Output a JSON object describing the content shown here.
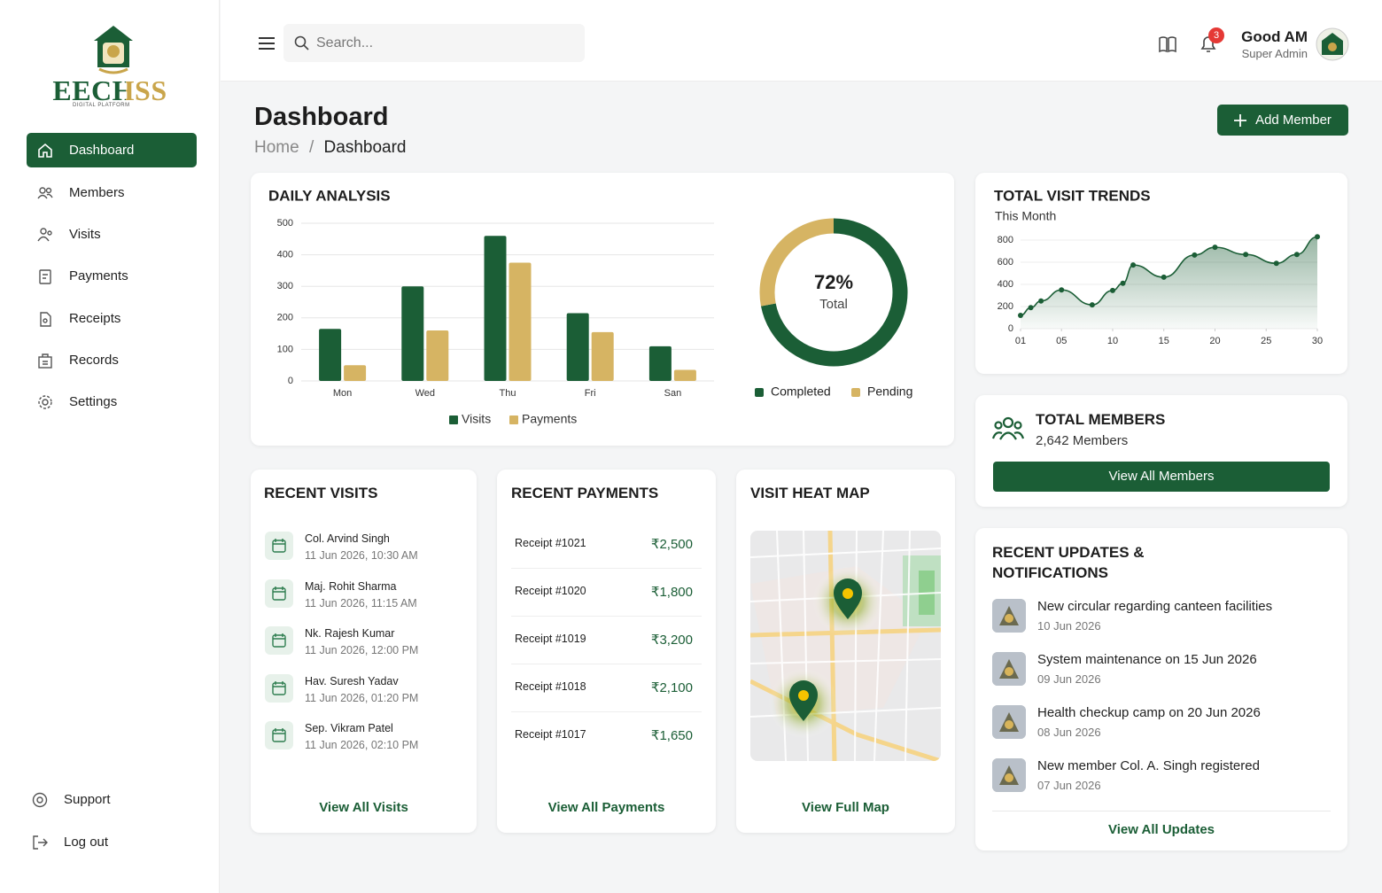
{
  "sidebar": {
    "logo": {
      "name": "EECHSS",
      "tagline": "DIGITAL PLATFORM"
    },
    "nav": [
      "Dashboard",
      "Members",
      "Visits",
      "Payments",
      "Receipts",
      "Records",
      "Settings"
    ],
    "footer_nav": [
      "Support",
      "Log out"
    ]
  },
  "topbar": {
    "search_placeholder": "Search...",
    "notification_count": 3,
    "user": {
      "greeting": "Good AM",
      "role": "Super Admin"
    }
  },
  "page_header": {
    "title": "Dashboard",
    "breadcrumb": [
      "Home",
      "Dashboard"
    ],
    "action": "Add Member"
  },
  "chart_data": [
    {
      "type": "bar",
      "title": "DAILY ANALYSIS",
      "categories": [
        "Mon",
        "Wed",
        "Thu",
        "Fri",
        "San"
      ],
      "series": [
        {
          "name": "Visits",
          "color": "#1b5e36",
          "values": [
            165,
            300,
            460,
            215,
            110
          ]
        },
        {
          "name": "Payments",
          "color": "#d6b463",
          "values": [
            50,
            160,
            375,
            155,
            35
          ]
        }
      ],
      "ylim": [
        0,
        500
      ],
      "yticks": [
        0,
        100,
        200,
        300,
        400,
        500
      ],
      "grid": true,
      "legend": "bottom"
    },
    {
      "type": "donut",
      "categories": [
        "Completed",
        "Pending"
      ],
      "values": [
        72,
        28
      ],
      "value_labels": [
        "72%",
        null
      ],
      "colors": [
        "#1b5e36",
        "#d6b463"
      ],
      "center_text": "Total",
      "legend": "bottom"
    },
    {
      "type": "line",
      "title": "TOTAL VISIT TRENDS",
      "subtitle": "This Month",
      "x": [
        1,
        2,
        3,
        5,
        8,
        10,
        11,
        12,
        15,
        18,
        20,
        23,
        26,
        28,
        30
      ],
      "values": [
        120,
        190,
        250,
        350,
        215,
        345,
        410,
        575,
        465,
        665,
        735,
        670,
        590,
        670,
        830
      ],
      "color": "#1b5e36",
      "area": true,
      "xlim": [
        1,
        30
      ],
      "xticks": [
        {
          "value": 1,
          "label": "01"
        },
        {
          "value": 5,
          "label": "05"
        },
        10,
        15,
        20,
        25,
        30
      ],
      "ylim": [
        0,
        800
      ],
      "yticks": [
        0,
        200,
        400,
        600,
        800
      ],
      "grid": true
    }
  ],
  "total_members": {
    "title": "TOTAL MEMBERS",
    "count_text": "2,642 Members",
    "action": "View All Members"
  },
  "recent_visits": {
    "title": "RECENT VISITS",
    "action": "View All Visits",
    "items": [
      {
        "name": "Col. Arvind Singh",
        "time": "11 Jun 2026, 10:30 AM"
      },
      {
        "name": "Maj. Rohit Sharma",
        "time": "11 Jun 2026, 11:15 AM"
      },
      {
        "name": "Nk. Rajesh Kumar",
        "time": "11 Jun 2026, 12:00 PM"
      },
      {
        "name": "Hav. Suresh Yadav",
        "time": "11 Jun 2026, 01:20 PM"
      },
      {
        "name": "Sep. Vikram Patel",
        "time": "11 Jun 2026, 02:10 PM"
      }
    ]
  },
  "recent_payments": {
    "title": "RECENT PAYMENTS",
    "action": "View All Payments",
    "items": [
      {
        "receipt": "Receipt #1021",
        "amount": "₹2,500"
      },
      {
        "receipt": "Receipt #1020",
        "amount": "₹1,800"
      },
      {
        "receipt": "Receipt #1019",
        "amount": "₹3,200"
      },
      {
        "receipt": "Receipt #1018",
        "amount": "₹2,100"
      },
      {
        "receipt": "Receipt #1017",
        "amount": "₹1,650"
      }
    ]
  },
  "heat_map": {
    "title": "VISIT HEAT MAP",
    "action": "View Full Map"
  },
  "updates": {
    "title": "RECENT UPDATES & NOTIFICATIONS",
    "action": "View All Updates",
    "items": [
      {
        "text": "New circular regarding canteen facilities",
        "date": "10 Jun 2026"
      },
      {
        "text": "System maintenance on 15 Jun 2026",
        "date": "09 Jun 2026"
      },
      {
        "text": "Health checkup camp on 20 Jun 2026",
        "date": "08 Jun 2026"
      },
      {
        "text": "New member Col. A. Singh registered",
        "date": "07 Jun 2026"
      }
    ]
  }
}
